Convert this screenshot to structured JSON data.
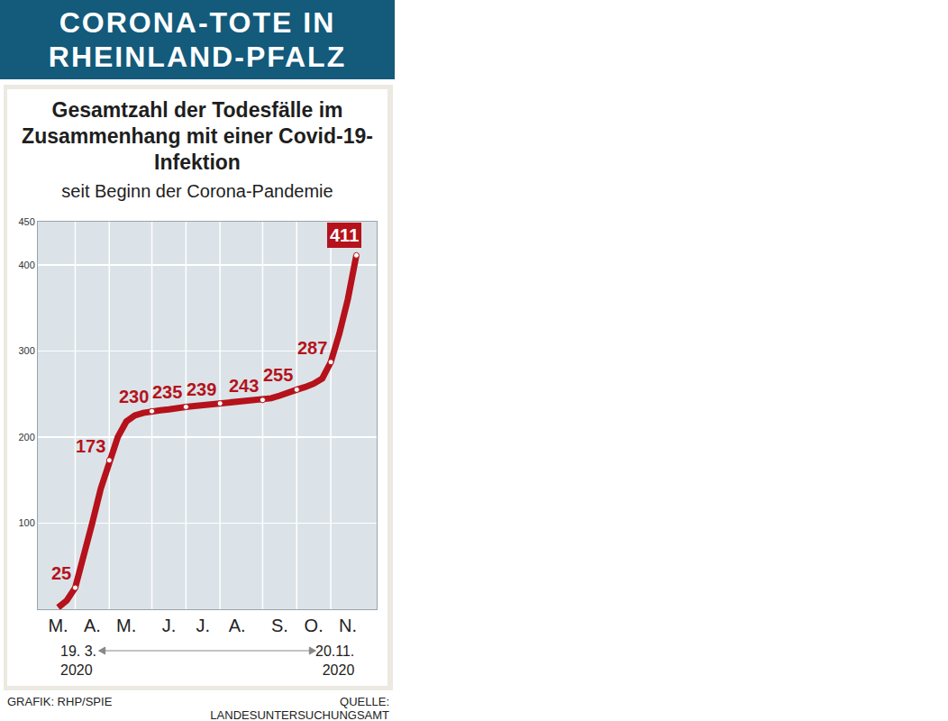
{
  "header": "CORONA-TOTE IN RHEINLAND-PFALZ",
  "chart_data": {
    "type": "line",
    "title": "Gesamtzahl der Todesfälle im Zusammenhang mit einer Covid-19-Infektion",
    "subtitle": "seit Beginn der Corona-Pandemie",
    "categories": [
      "M.",
      null,
      null,
      null,
      "A.",
      null,
      null,
      null,
      "M.",
      null,
      null,
      null,
      null,
      "J.",
      null,
      null,
      null,
      "J.",
      null,
      null,
      null,
      "A.",
      null,
      null,
      null,
      null,
      "S.",
      null,
      null,
      null,
      "O.",
      null,
      null,
      null,
      "N.",
      null
    ],
    "values": [
      2,
      10,
      25,
      60,
      100,
      140,
      173,
      200,
      218,
      225,
      228,
      230,
      231,
      232,
      234,
      235,
      236,
      237,
      238,
      239,
      240,
      241,
      242,
      242,
      243,
      245,
      248,
      252,
      255,
      258,
      262,
      268,
      287,
      320,
      360,
      411
    ],
    "value_labels": [
      null,
      null,
      "25",
      null,
      null,
      null,
      "173",
      null,
      null,
      null,
      null,
      "230",
      null,
      null,
      null,
      "235",
      null,
      null,
      null,
      "239",
      null,
      null,
      null,
      null,
      "243",
      null,
      null,
      null,
      "255",
      null,
      null,
      null,
      "287",
      null,
      null,
      "411"
    ],
    "color": "#b5121b",
    "marker": "circle",
    "ylim": [
      0,
      450
    ],
    "yticks": [
      100,
      200,
      300,
      400,
      450
    ],
    "grid": true,
    "data_labels": true,
    "start_label": "19. 3. 2020",
    "end_label": "20.11. 2020"
  },
  "footer": {
    "credit": "GRAFIK: RHP/SPIE",
    "source": "QUELLE: LANDESUNTERSUCHUNGSAMT"
  }
}
